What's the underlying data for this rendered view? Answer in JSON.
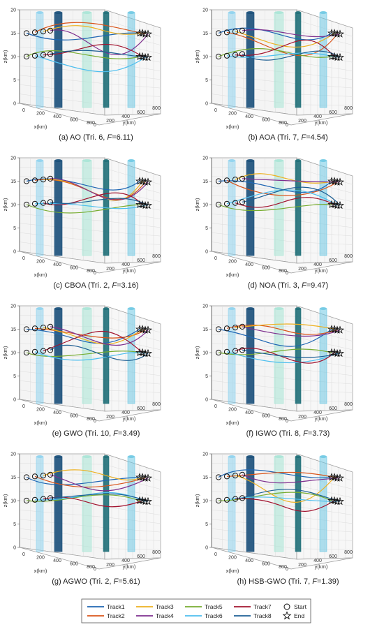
{
  "figure": {
    "legend": {
      "tracks": [
        {
          "label": "Track1",
          "color": "#1f66b3"
        },
        {
          "label": "Track2",
          "color": "#d9541a"
        },
        {
          "label": "Track3",
          "color": "#edb120"
        },
        {
          "label": "Track4",
          "color": "#7e2f8e"
        },
        {
          "label": "Track5",
          "color": "#77ac30"
        },
        {
          "label": "Track6",
          "color": "#4dbeee"
        },
        {
          "label": "Track7",
          "color": "#a2142f"
        },
        {
          "label": "Track8",
          "color": "#1d5f94"
        }
      ],
      "start_label": "Start",
      "end_label": "End",
      "start_icon": "circle-icon",
      "end_icon": "star-icon"
    }
  },
  "chart_data": [
    {
      "type": "line",
      "panel": "a",
      "caption": "(a) AO (Tri. 6, ",
      "f_symbol": "F",
      "f_value": "=6.11)",
      "xlabel": "x(km)",
      "ylabel": "y(km)",
      "zlabel": "z(km)",
      "x_ticks": [
        "0",
        "200",
        "400",
        "600",
        "800"
      ],
      "y_ticks": [
        "0",
        "200",
        "400",
        "600",
        "800"
      ],
      "z_ticks": [
        "0",
        "5",
        "10",
        "15",
        "20"
      ],
      "zlim": [
        0,
        20
      ],
      "start_altitudes_km": [
        15,
        15,
        15,
        15,
        10,
        10,
        10,
        10
      ],
      "end_altitudes_km": [
        15,
        15,
        15,
        15,
        10,
        10,
        10,
        10
      ]
    },
    {
      "type": "line",
      "panel": "b",
      "caption": "(b) AOA (Tri. 7, ",
      "f_symbol": "F",
      "f_value": "=4.54)",
      "xlabel": "x(km)",
      "ylabel": "y(km)",
      "zlabel": "z(km)",
      "x_ticks": [
        "0",
        "200",
        "400",
        "600",
        "800"
      ],
      "y_ticks": [
        "0",
        "200",
        "400",
        "600",
        "800"
      ],
      "z_ticks": [
        "0",
        "5",
        "10",
        "15",
        "20"
      ],
      "zlim": [
        0,
        20
      ],
      "start_altitudes_km": [
        15,
        15,
        15,
        15,
        10,
        10,
        10,
        10
      ],
      "end_altitudes_km": [
        15,
        15,
        15,
        15,
        10,
        10,
        10,
        10
      ]
    },
    {
      "type": "line",
      "panel": "c",
      "caption": "(c) CBOA (Tri. 2, ",
      "f_symbol": "F",
      "f_value": "=3.16)",
      "xlabel": "x(km)",
      "ylabel": "y(km)",
      "zlabel": "z(km)",
      "x_ticks": [
        "0",
        "200",
        "400",
        "600",
        "800"
      ],
      "y_ticks": [
        "0",
        "200",
        "400",
        "600",
        "800"
      ],
      "z_ticks": [
        "0",
        "5",
        "10",
        "15",
        "20"
      ],
      "zlim": [
        0,
        20
      ],
      "start_altitudes_km": [
        15,
        15,
        15,
        15,
        10,
        10,
        10,
        10
      ],
      "end_altitudes_km": [
        15,
        15,
        15,
        15,
        10,
        10,
        10,
        10
      ]
    },
    {
      "type": "line",
      "panel": "d",
      "caption": "(d) NOA (Tri. 3, ",
      "f_symbol": "F",
      "f_value": "=9.47)",
      "xlabel": "x(km)",
      "ylabel": "y(km)",
      "zlabel": "z(km)",
      "x_ticks": [
        "0",
        "200",
        "400",
        "600",
        "800"
      ],
      "y_ticks": [
        "0",
        "200",
        "400",
        "600",
        "800"
      ],
      "z_ticks": [
        "0",
        "5",
        "10",
        "15",
        "20"
      ],
      "zlim": [
        0,
        20
      ],
      "start_altitudes_km": [
        15,
        15,
        15,
        15,
        10,
        10,
        10,
        10
      ],
      "end_altitudes_km": [
        15,
        15,
        15,
        15,
        10,
        10,
        10,
        10
      ]
    },
    {
      "type": "line",
      "panel": "e",
      "caption": "(e) GWO (Tri. 10, ",
      "f_symbol": "F",
      "f_value": "=3.49)",
      "xlabel": "x(km)",
      "ylabel": "y(km)",
      "zlabel": "z(km)",
      "x_ticks": [
        "0",
        "200",
        "400",
        "600",
        "800"
      ],
      "y_ticks": [
        "0",
        "200",
        "400",
        "600",
        "800"
      ],
      "z_ticks": [
        "0",
        "5",
        "10",
        "15",
        "20"
      ],
      "zlim": [
        0,
        20
      ],
      "start_altitudes_km": [
        15,
        15,
        15,
        15,
        10,
        10,
        10,
        10
      ],
      "end_altitudes_km": [
        15,
        15,
        15,
        15,
        10,
        10,
        10,
        10
      ]
    },
    {
      "type": "line",
      "panel": "f",
      "caption": "(f) IGWO (Tri. 8, ",
      "f_symbol": "F",
      "f_value": "=3.73)",
      "xlabel": "x(km)",
      "ylabel": "y(km)",
      "zlabel": "z(km)",
      "x_ticks": [
        "0",
        "200",
        "400",
        "600",
        "800"
      ],
      "y_ticks": [
        "0",
        "200",
        "400",
        "600",
        "800"
      ],
      "z_ticks": [
        "0",
        "5",
        "10",
        "15",
        "20"
      ],
      "zlim": [
        0,
        20
      ],
      "start_altitudes_km": [
        15,
        15,
        15,
        15,
        10,
        10,
        10,
        10
      ],
      "end_altitudes_km": [
        15,
        15,
        15,
        15,
        10,
        10,
        10,
        10
      ]
    },
    {
      "type": "line",
      "panel": "g",
      "caption": "(g) AGWO (Tri. 2, ",
      "f_symbol": "F",
      "f_value": "=5.61)",
      "xlabel": "x(km)",
      "ylabel": "y(km)",
      "zlabel": "z(km)",
      "x_ticks": [
        "0",
        "200",
        "400",
        "600",
        "800"
      ],
      "y_ticks": [
        "0",
        "200",
        "400",
        "600",
        "800"
      ],
      "z_ticks": [
        "0",
        "5",
        "10",
        "15",
        "20"
      ],
      "zlim": [
        0,
        20
      ],
      "start_altitudes_km": [
        15,
        15,
        15,
        15,
        10,
        10,
        10,
        10
      ],
      "end_altitudes_km": [
        15,
        15,
        15,
        15,
        10,
        10,
        10,
        10
      ]
    },
    {
      "type": "line",
      "panel": "h",
      "caption": "(h) HSB-GWO (Tri. 7, ",
      "f_symbol": "F",
      "f_value": "=1.39)",
      "xlabel": "x(km)",
      "ylabel": "y(km)",
      "zlabel": "z(km)",
      "x_ticks": [
        "0",
        "200",
        "400",
        "600",
        "800"
      ],
      "y_ticks": [
        "0",
        "200",
        "400",
        "600",
        "800"
      ],
      "z_ticks": [
        "0",
        "5",
        "10",
        "15",
        "20"
      ],
      "zlim": [
        0,
        20
      ],
      "start_altitudes_km": [
        15,
        15,
        15,
        15,
        10,
        10,
        10,
        10
      ],
      "end_altitudes_km": [
        15,
        15,
        15,
        15,
        10,
        10,
        10,
        10
      ]
    }
  ]
}
